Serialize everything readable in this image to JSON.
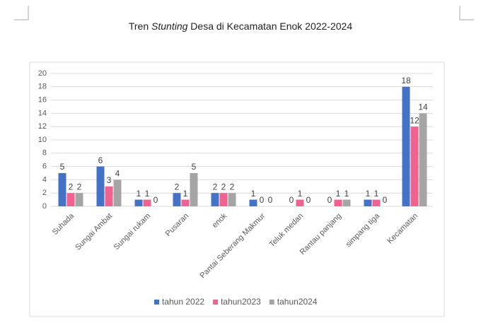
{
  "chart_data": {
    "type": "bar",
    "title": [
      "Tren",
      "Stunting",
      "Desa di Kecamatan Enok 2022-2024"
    ],
    "categories": [
      "Suhada",
      "Sungai Ambat",
      "Sungai rukam",
      "Pusaran",
      "enok",
      "Pantai Seberang Makmur",
      "Teluk medan",
      "Rantau panjang",
      "simpang tiga",
      "Kecamatan"
    ],
    "series": [
      {
        "name": "tahun 2022",
        "color": "#4472c4",
        "values": [
          5,
          6,
          1,
          2,
          2,
          1,
          0,
          0,
          1,
          18
        ]
      },
      {
        "name": "tahun2023",
        "color": "#f06292",
        "values": [
          2,
          3,
          1,
          1,
          2,
          0,
          1,
          1,
          1,
          12
        ]
      },
      {
        "name": "tahun2024",
        "color": "#a5a5a5",
        "values": [
          2,
          4,
          0,
          5,
          2,
          0,
          0,
          1,
          0,
          14
        ]
      }
    ],
    "ylim": [
      0,
      20
    ],
    "yticks": [
      0,
      2,
      4,
      6,
      8,
      10,
      12,
      14,
      16,
      18,
      20
    ],
    "grid": true,
    "legend": "bottom"
  }
}
